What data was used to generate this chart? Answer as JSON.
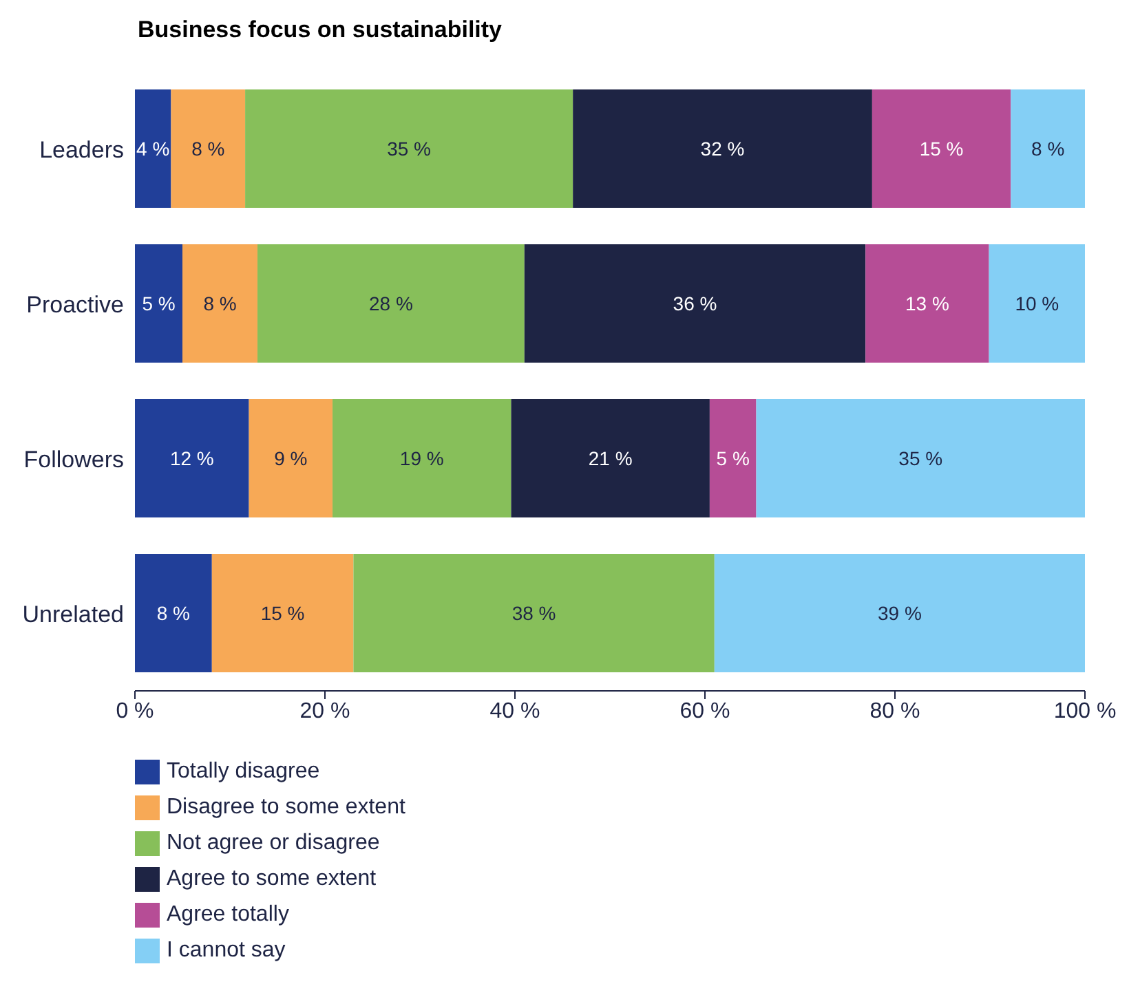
{
  "chart_data": {
    "type": "bar",
    "title": "Business focus on sustainability",
    "orientation": "horizontal",
    "stacked": true,
    "categories": [
      "Leaders",
      "Proactive",
      "Followers",
      "Unrelated"
    ],
    "series": [
      {
        "name": "Totally disagree",
        "color": "#213f99",
        "values": [
          3.8,
          5.0,
          12.0,
          8.1
        ],
        "value_labels": [
          "4 %",
          "5 %",
          "12 %",
          "8 %"
        ]
      },
      {
        "name": "Disagree to some extent",
        "color": "#f7a956",
        "values": [
          7.8,
          7.9,
          8.8,
          14.9
        ],
        "value_labels": [
          "8 %",
          "8 %",
          "9 %",
          "15 %"
        ]
      },
      {
        "name": "Not agree or disagree",
        "color": "#87bf5a",
        "values": [
          34.5,
          28.1,
          18.8,
          38.0
        ],
        "value_labels": [
          "35 %",
          "28 %",
          "19 %",
          "38 %"
        ]
      },
      {
        "name": "Agree to some extent",
        "color": "#1e2444",
        "values": [
          31.5,
          35.9,
          20.9,
          null
        ],
        "value_labels": [
          "32 %",
          "36 %",
          "21 %",
          null
        ]
      },
      {
        "name": "Agree totally",
        "color": "#b64d96",
        "values": [
          14.6,
          13.0,
          4.9,
          null
        ],
        "value_labels": [
          "15 %",
          "13 %",
          "5 %",
          null
        ]
      },
      {
        "name": "I cannot say",
        "color": "#84cff5",
        "values": [
          7.8,
          10.1,
          34.6,
          39.0
        ],
        "value_labels": [
          "8 %",
          "10 %",
          "35 %",
          "39 %"
        ]
      }
    ],
    "xlim": [
      0,
      100
    ],
    "xticks": [
      {
        "value": 0,
        "label": "0 %"
      },
      {
        "value": 20,
        "label": "20 %"
      },
      {
        "value": 40,
        "label": "40 %"
      },
      {
        "value": 60,
        "label": "60 %"
      },
      {
        "value": 80,
        "label": "80 %"
      },
      {
        "value": 100,
        "label": "100 %"
      }
    ],
    "grid": false,
    "legend": "bottom left"
  }
}
